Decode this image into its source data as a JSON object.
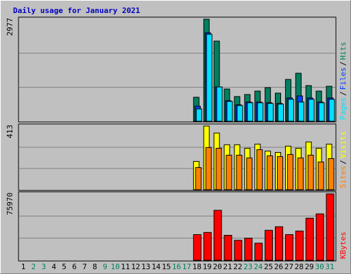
{
  "chart_data": [
    {
      "type": "bar",
      "title": "Daily usage for January 2021",
      "ylim": [
        0,
        2977
      ],
      "yticks": [
        2977
      ],
      "legend_separator": "/",
      "series": [
        {
          "name": "Hits",
          "color": "#008060",
          "values": [
            null,
            null,
            null,
            null,
            null,
            null,
            null,
            null,
            null,
            null,
            null,
            null,
            null,
            null,
            null,
            null,
            null,
            700,
            2977,
            2338,
            940,
            720,
            780,
            880,
            980,
            820,
            1220,
            1400,
            1040,
            880,
            1020
          ]
        },
        {
          "name": "Files",
          "color": "#0040ff",
          "values": [
            null,
            null,
            null,
            null,
            null,
            null,
            null,
            null,
            null,
            null,
            null,
            null,
            null,
            null,
            null,
            null,
            null,
            440,
            2580,
            1000,
            600,
            480,
            560,
            560,
            540,
            520,
            680,
            740,
            680,
            560,
            680
          ]
        },
        {
          "name": "Pages",
          "color": "#00e0ff",
          "values": [
            null,
            null,
            null,
            null,
            null,
            null,
            null,
            null,
            null,
            null,
            null,
            null,
            null,
            null,
            null,
            null,
            null,
            360,
            2537,
            1000,
            580,
            460,
            540,
            540,
            520,
            500,
            640,
            560,
            640,
            540,
            640
          ]
        }
      ]
    },
    {
      "type": "bar",
      "ylim": [
        0,
        413
      ],
      "yticks": [
        413
      ],
      "legend_separator": "/",
      "series": [
        {
          "name": "Visits",
          "color": "#ffff00",
          "values": [
            null,
            null,
            null,
            null,
            null,
            null,
            null,
            null,
            null,
            null,
            null,
            null,
            null,
            null,
            null,
            null,
            null,
            184,
            413,
            368,
            292,
            292,
            269,
            296,
            251,
            242,
            283,
            269,
            310,
            269,
            296
          ]
        },
        {
          "name": "Sites",
          "color": "#ff8000",
          "values": [
            null,
            null,
            null,
            null,
            null,
            null,
            null,
            null,
            null,
            null,
            null,
            null,
            null,
            null,
            null,
            null,
            null,
            144,
            274,
            269,
            224,
            224,
            206,
            260,
            220,
            215,
            229,
            206,
            224,
            180,
            202
          ]
        }
      ]
    },
    {
      "type": "bar",
      "ylim": [
        0,
        75970
      ],
      "yticks": [
        75970
      ],
      "categories": [
        "1",
        "2",
        "3",
        "4",
        "5",
        "6",
        "7",
        "8",
        "9",
        "10",
        "11",
        "12",
        "13",
        "14",
        "15",
        "16",
        "17",
        "18",
        "19",
        "20",
        "21",
        "22",
        "23",
        "24",
        "25",
        "26",
        "27",
        "28",
        "29",
        "30",
        "31"
      ],
      "category_colors": [
        "#000",
        "#008060",
        "#008060",
        "#000",
        "#000",
        "#000",
        "#000",
        "#000",
        "#008060",
        "#008060",
        "#000",
        "#000",
        "#000",
        "#000",
        "#000",
        "#008060",
        "#008060",
        "#000",
        "#000",
        "#000",
        "#000",
        "#000",
        "#008060",
        "#008060",
        "#000",
        "#000",
        "#000",
        "#000",
        "#000",
        "#008060",
        "#008060"
      ],
      "series": [
        {
          "name": "KBytes",
          "color": "#ff0000",
          "values": [
            null,
            null,
            null,
            null,
            null,
            null,
            null,
            null,
            null,
            null,
            null,
            null,
            null,
            null,
            null,
            null,
            null,
            29400,
            31860,
            57180,
            28590,
            22870,
            25320,
            19600,
            34300,
            38390,
            29400,
            33490,
            48200,
            53100,
            75970
          ]
        }
      ]
    }
  ]
}
